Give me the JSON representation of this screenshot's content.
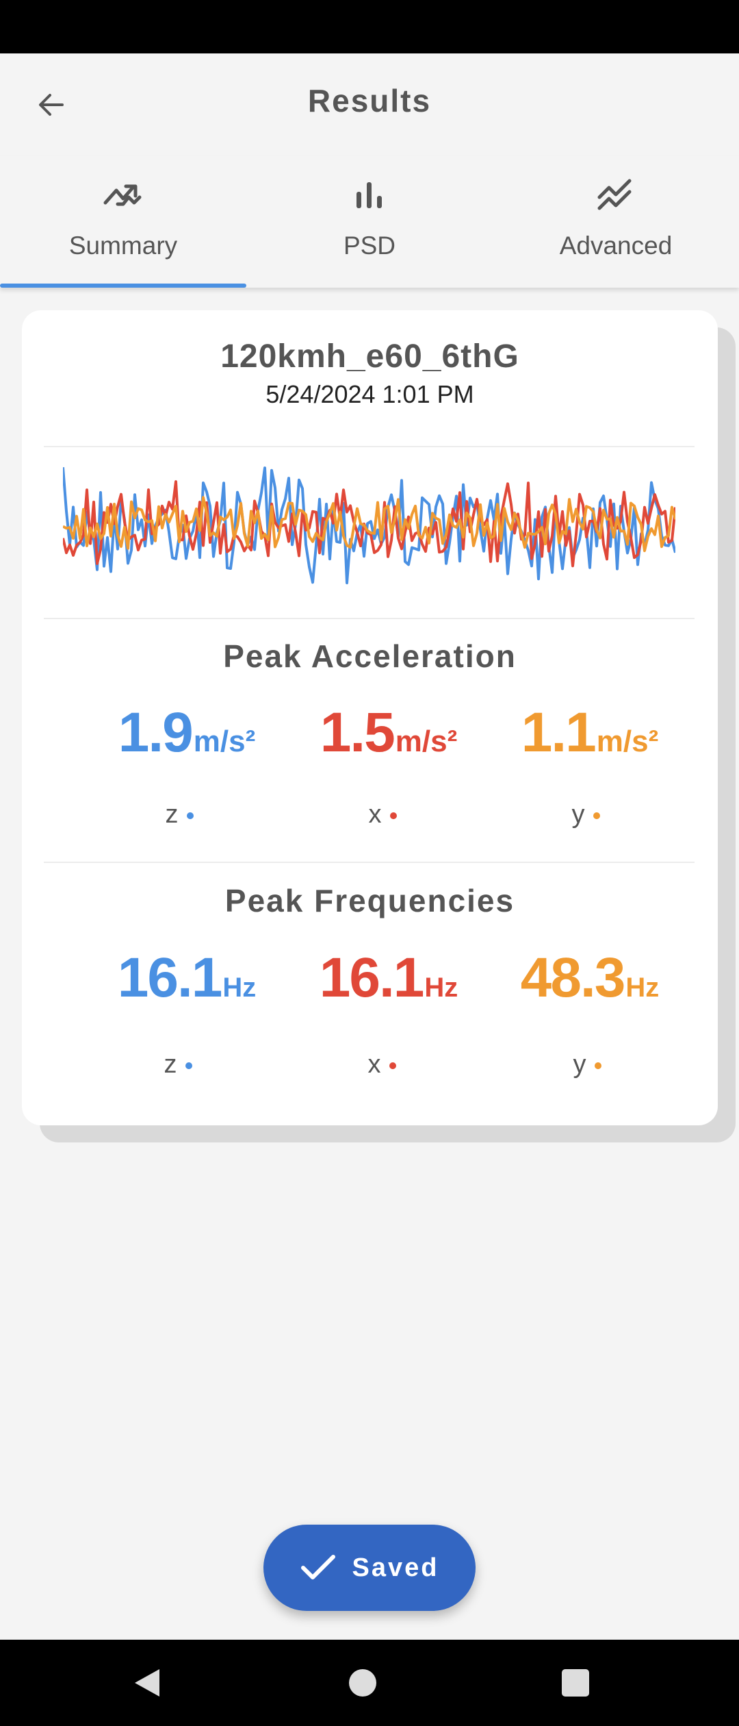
{
  "app_bar": {
    "title": "Results",
    "back_icon": "arrow-back-icon"
  },
  "tabs": [
    {
      "label": "Summary",
      "icon": "trend-icon",
      "selected": true
    },
    {
      "label": "PSD",
      "icon": "bar-chart-icon",
      "selected": false
    },
    {
      "label": "Advanced",
      "icon": "multi-line-icon",
      "selected": false
    }
  ],
  "recording": {
    "name": "120kmh_e60_6thG",
    "date": "5/24/2024 1:01 PM"
  },
  "colors": {
    "z": "#4a90e2",
    "x": "#e04838",
    "y": "#f09a30",
    "accent": "#3366c2"
  },
  "peak_acceleration": {
    "title": "Peak Acceleration",
    "unit": "m/s²",
    "z": {
      "value": "1.9",
      "label": "z"
    },
    "x": {
      "value": "1.5",
      "label": "x"
    },
    "y": {
      "value": "1.1",
      "label": "y"
    }
  },
  "peak_frequencies": {
    "title": "Peak Frequencies",
    "unit": "Hz",
    "z": {
      "value": "16.1",
      "label": "z"
    },
    "x": {
      "value": "16.1",
      "label": "x"
    },
    "y": {
      "value": "48.3",
      "label": "y"
    }
  },
  "fab": {
    "label": "Saved",
    "icon": "check-icon"
  },
  "nav": {
    "back": "nav-back-icon",
    "home": "nav-home-icon",
    "recents": "nav-recents-icon"
  }
}
